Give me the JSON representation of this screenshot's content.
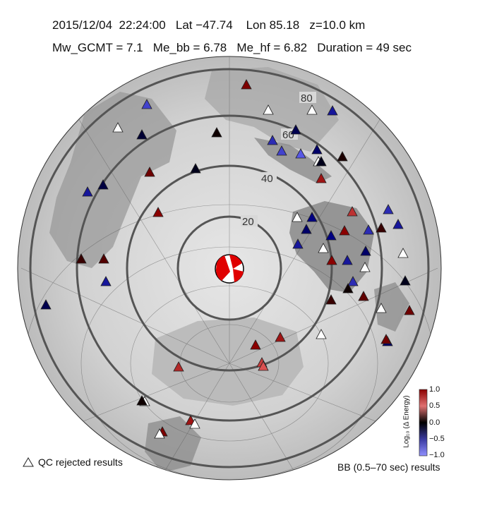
{
  "header": {
    "line1": "2015/12/04  22:24:00   Lat −47.74    Lon 85.18   z=10.0 km",
    "line2": "Mw_GCMT = 7.1   Me_bb = 6.78   Me_hf = 6.82   Duration = 49 sec"
  },
  "map": {
    "distance_labels": [
      "20",
      "40",
      "60",
      "80"
    ],
    "distance_rings_deg": [
      20,
      40,
      60,
      80
    ]
  },
  "colorbar": {
    "title": "Log₁₀ (Δ Energy)",
    "ticks": [
      "1.0",
      "0.5",
      "0.0",
      "−0.5",
      "−1.0"
    ],
    "range": [
      -1.0,
      1.0
    ],
    "colors": {
      "high": "#8b0000",
      "mid": "#000000",
      "low": "#6b6bff"
    }
  },
  "legend": {
    "qc_rejected": "QC rejected results",
    "bb_results": "BB (0.5–70 sec) results"
  },
  "stations": [
    {
      "v": 0.45
    },
    {
      "v": -0.8
    },
    {
      "v": null
    },
    {
      "v": -0.2
    },
    {
      "v": null
    },
    {
      "v": null
    },
    {
      "v": -0.6
    },
    {
      "v": 0.05
    },
    {
      "v": -0.3
    },
    {
      "v": -0.7
    },
    {
      "v": -0.8
    },
    {
      "v": -0.9
    },
    {
      "v": 0.4
    },
    {
      "v": -0.25
    },
    {
      "v": -0.6
    },
    {
      "v": null
    },
    {
      "v": -0.4
    },
    {
      "v": 0.1
    },
    {
      "v": -0.1
    },
    {
      "v": 0.5
    },
    {
      "v": 0.6
    },
    {
      "v": 0.75
    },
    {
      "v": -0.7
    },
    {
      "v": -0.6
    },
    {
      "v": -0.4
    },
    {
      "v": null
    },
    {
      "v": -0.5
    },
    {
      "v": -0.7
    },
    {
      "v": 0.2
    },
    {
      "v": -0.6
    },
    {
      "v": -0.5
    },
    {
      "v": 0.5
    },
    {
      "v": null
    },
    {
      "v": -0.6
    },
    {
      "v": 0.5
    },
    {
      "v": null
    },
    {
      "v": -0.4
    },
    {
      "v": null
    },
    {
      "v": -0.7
    },
    {
      "v": 0.2
    },
    {
      "v": 0.3
    },
    {
      "v": -0.6
    },
    {
      "v": -0.3
    },
    {
      "v": 0.05
    },
    {
      "v": 0.35
    },
    {
      "v": -0.1
    },
    {
      "v": 0.2
    },
    {
      "v": 0.4
    },
    {
      "v": null
    },
    {
      "v": 0.6
    },
    {
      "v": 0.5
    },
    {
      "v": null
    },
    {
      "v": -0.4
    },
    {
      "v": 0.8
    },
    {
      "v": 0.9
    },
    {
      "v": 0.7
    },
    {
      "v": null
    },
    {
      "v": 0.45
    },
    {
      "v": 0.6
    },
    {
      "v": null
    },
    {
      "v": null
    },
    {
      "v": 0.05
    },
    {
      "v": 0.4
    },
    {
      "v": -0.1
    }
  ]
}
